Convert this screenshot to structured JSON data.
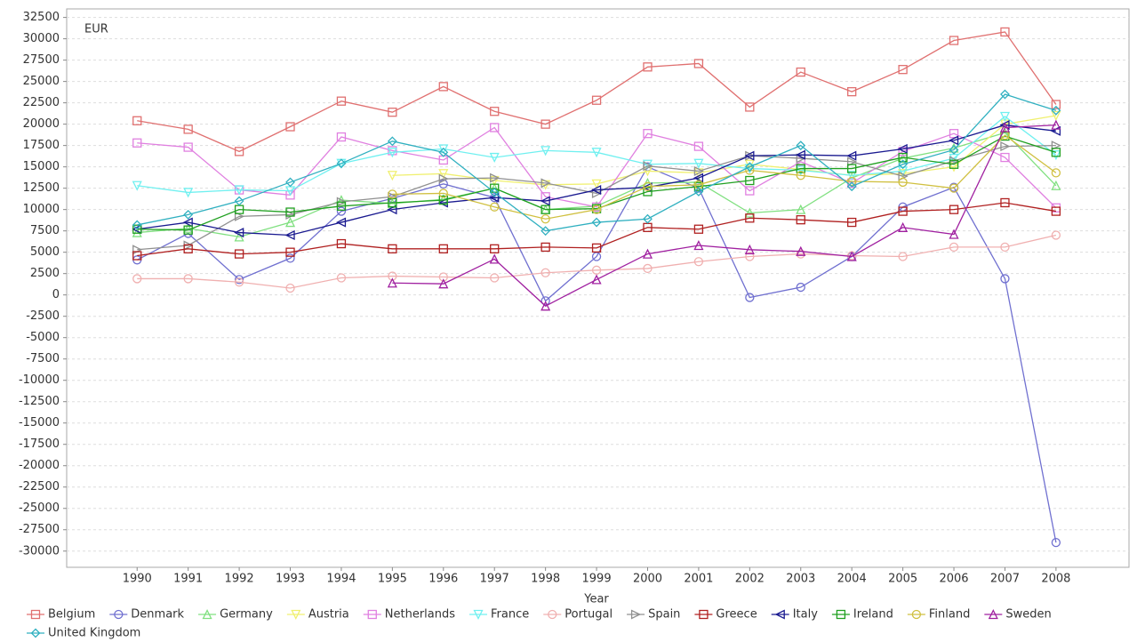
{
  "chart_data": {
    "type": "line",
    "y_annotation": "EUR",
    "x_label": "Year",
    "xlim": [
      1988.62,
      2009.43
    ],
    "ylim": [
      -31900,
      33500
    ],
    "xticks": [
      1990,
      1991,
      1992,
      1993,
      1994,
      1995,
      1996,
      1997,
      1998,
      1999,
      2000,
      2001,
      2002,
      2003,
      2004,
      2005,
      2006,
      2007,
      2008
    ],
    "yticks": [
      -30000,
      -27500,
      -25000,
      -22500,
      -20000,
      -17500,
      -15000,
      -12500,
      -10000,
      -7500,
      -5000,
      -2500,
      0,
      2500,
      5000,
      7500,
      10000,
      12500,
      15000,
      17500,
      20000,
      22500,
      25000,
      27500,
      30000,
      32500
    ],
    "grid": true,
    "legend": "bottom",
    "x": [
      1990,
      1991,
      1992,
      1993,
      1994,
      1995,
      1996,
      1997,
      1998,
      1999,
      2000,
      2001,
      2002,
      2003,
      2004,
      2005,
      2006,
      2007,
      2008
    ],
    "series": [
      {
        "name": "Belgium",
        "color": "#e07070",
        "marker": "square",
        "values": [
          20400,
          19400,
          16800,
          19700,
          22700,
          21400,
          24400,
          21500,
          20000,
          22800,
          26700,
          27100,
          22000,
          26100,
          23800,
          26400,
          29800,
          30800,
          22300
        ]
      },
      {
        "name": "Denmark",
        "color": "#7070d0",
        "marker": "circle",
        "values": [
          4100,
          7200,
          1800,
          4300,
          9800,
          11300,
          13000,
          11400,
          -700,
          4500,
          15000,
          12500,
          -300,
          900,
          4500,
          10300,
          12600,
          1900,
          -29000
        ]
      },
      {
        "name": "Germany",
        "color": "#80e080",
        "marker": "triangle-up",
        "values": [
          7300,
          7800,
          6800,
          8500,
          11100,
          10700,
          11200,
          12500,
          10000,
          10400,
          13100,
          13200,
          9600,
          10000,
          13700,
          16000,
          17200,
          19000,
          12800
        ]
      },
      {
        "name": "Austria",
        "color": "#f0f070",
        "marker": "triangle-down",
        "values": [
          null,
          null,
          null,
          null,
          null,
          14000,
          14200,
          13400,
          12900,
          13000,
          14500,
          14300,
          15300,
          14700,
          14000,
          14200,
          15000,
          20000,
          21000
        ]
      },
      {
        "name": "Netherlands",
        "color": "#e080e0",
        "marker": "square",
        "values": [
          17800,
          17300,
          12300,
          11700,
          18500,
          16900,
          15800,
          19600,
          11500,
          10300,
          18900,
          17400,
          12200,
          15600,
          13100,
          16800,
          18900,
          16100,
          10200
        ]
      },
      {
        "name": "France",
        "color": "#70f0f0",
        "marker": "triangle-down",
        "values": [
          12800,
          12000,
          12300,
          12200,
          15400,
          16700,
          17100,
          16100,
          16900,
          16700,
          15300,
          15400,
          14800,
          14600,
          14000,
          14500,
          16000,
          20900,
          16400
        ]
      },
      {
        "name": "Portugal",
        "color": "#f0b0b0",
        "marker": "circle",
        "values": [
          1900,
          1900,
          1500,
          800,
          2000,
          2200,
          2100,
          2000,
          2600,
          2900,
          3100,
          3900,
          4500,
          4800,
          4600,
          4500,
          5600,
          5600,
          7000
        ]
      },
      {
        "name": "Spain",
        "color": "#909090",
        "marker": "triangle-right",
        "values": [
          5300,
          5800,
          9200,
          9400,
          10900,
          11500,
          13600,
          13700,
          13100,
          11900,
          15100,
          14500,
          16300,
          16000,
          15600,
          13900,
          15700,
          17400,
          17500
        ]
      },
      {
        "name": "Greece",
        "color": "#b02020",
        "marker": "square",
        "values": [
          4600,
          5400,
          4800,
          5000,
          6000,
          5400,
          5400,
          5400,
          5600,
          5500,
          7900,
          7700,
          9000,
          8800,
          8500,
          9800,
          10000,
          10800,
          9800
        ]
      },
      {
        "name": "Italy",
        "color": "#1a1a90",
        "marker": "triangle-left",
        "values": [
          7700,
          8500,
          7300,
          7000,
          8500,
          10000,
          10800,
          11400,
          11000,
          12300,
          12600,
          13700,
          16300,
          16400,
          16300,
          17100,
          18100,
          19900,
          19200
        ]
      },
      {
        "name": "Ireland",
        "color": "#20a020",
        "marker": "square",
        "values": [
          7700,
          7600,
          10000,
          9700,
          10400,
          10800,
          11100,
          12500,
          10000,
          10100,
          12100,
          12700,
          13400,
          14800,
          14800,
          16100,
          15300,
          18600,
          16700
        ]
      },
      {
        "name": "Finland",
        "color": "#d0c040",
        "marker": "circle",
        "values": [
          null,
          null,
          null,
          null,
          null,
          11800,
          11900,
          10300,
          8900,
          10000,
          12700,
          12900,
          14600,
          14000,
          13300,
          13200,
          12500,
          18700,
          14300
        ]
      },
      {
        "name": "Sweden",
        "color": "#a020a0",
        "marker": "triangle-up",
        "values": [
          null,
          null,
          null,
          null,
          null,
          1400,
          1300,
          4200,
          -1300,
          1800,
          4800,
          5800,
          5300,
          5100,
          4500,
          7900,
          7100,
          19600,
          19900
        ]
      },
      {
        "name": "United Kingdom",
        "color": "#30b0c0",
        "marker": "diamond",
        "values": [
          8200,
          9400,
          11000,
          13200,
          15400,
          18000,
          16700,
          12000,
          7500,
          8500,
          8900,
          12100,
          15000,
          17500,
          12700,
          15300,
          17000,
          23500,
          21600
        ]
      }
    ]
  }
}
